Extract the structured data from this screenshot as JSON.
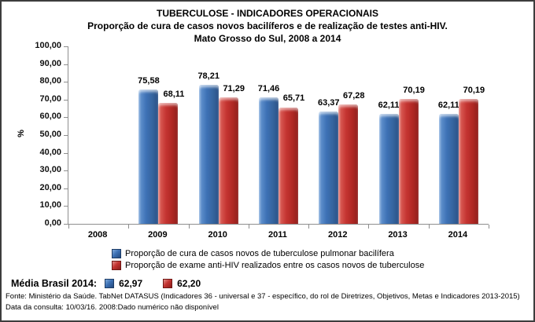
{
  "title": {
    "line1": "TUBERCULOSE - INDICADORES OPERACIONAIS",
    "line2": "Proporção de cura de casos novos bacilíferos e de realização de testes anti-HIV.",
    "line3": "Mato Grosso do Sul, 2008 a 2014"
  },
  "chart_data": {
    "type": "bar",
    "categories": [
      "2008",
      "2009",
      "2010",
      "2011",
      "2012",
      "2013",
      "2014"
    ],
    "series": [
      {
        "name": "Proporção de cura de casos novos de tuberculose pulmonar bacilífera",
        "color": "#3D71B5",
        "values": [
          null,
          75.58,
          78.21,
          71.46,
          63.37,
          62.11,
          62.11
        ],
        "labels": [
          "",
          "75,58",
          "78,21",
          "71,46",
          "63,37",
          "62,11",
          "62,11"
        ]
      },
      {
        "name": "Proporção de exame anti-HIV realizados entre os casos novos de tuberculose",
        "color": "#C43431",
        "values": [
          null,
          68.11,
          71.29,
          65.71,
          67.28,
          70.19,
          70.19
        ],
        "labels": [
          "",
          "68,11",
          "71,29",
          "65,71",
          "67,28",
          "70,19",
          "70,19"
        ]
      }
    ],
    "ylabel": "%",
    "ylim": [
      0,
      100
    ],
    "yticks": [
      "100,00",
      "90,00",
      "80,00",
      "70,00",
      "60,00",
      "50,00",
      "40,00",
      "30,00",
      "20,00",
      "10,00",
      "0,00"
    ],
    "grid": false,
    "legend_position": "bottom"
  },
  "media_brasil": {
    "label": "Média Brasil 2014:",
    "series1_value": "62,97",
    "series2_value": "62,20"
  },
  "footer": {
    "line1": "Fonte: Ministério da Saúde. TabNet DATASUS (Indicadores 36 - universal e 37 - específico, do rol de Diretrizes, Objetivos, Metas e Indicadores 2013-2015)",
    "line2": "Data da consulta: 10/03/16. 2008:Dado numérico não disponível"
  }
}
